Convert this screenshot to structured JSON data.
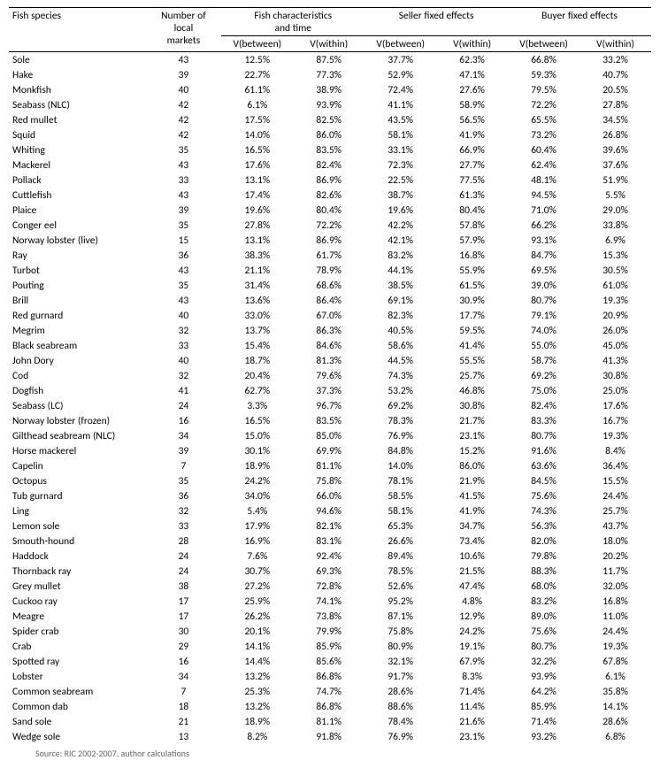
{
  "table": {
    "header": {
      "species": "Fish species",
      "markets": "Number of\nlocal\nmarkets",
      "group_fish": "Fish characteristics\nand time",
      "group_seller": "Seller fixed effects",
      "group_buyer": "Buyer fixed effects",
      "vbetween": "V(between)",
      "vwithin": "V(within)"
    },
    "footer": "Source: RIC 2002-2007, author calculations",
    "rows": [
      {
        "species": "Sole",
        "markets": 43,
        "fb": "12.5%",
        "fw": "87.5%",
        "sb": "37.7%",
        "sw": "62.3%",
        "bb": "66.8%",
        "bw": "33.2%"
      },
      {
        "species": "Hake",
        "markets": 39,
        "fb": "22.7%",
        "fw": "77.3%",
        "sb": "52.9%",
        "sw": "47.1%",
        "bb": "59.3%",
        "bw": "40.7%"
      },
      {
        "species": "Monkfish",
        "markets": 40,
        "fb": "61.1%",
        "fw": "38.9%",
        "sb": "72.4%",
        "sw": "27.6%",
        "bb": "79.5%",
        "bw": "20.5%"
      },
      {
        "species": "Seabass (NLC)",
        "markets": 42,
        "fb": "6.1%",
        "fw": "93.9%",
        "sb": "41.1%",
        "sw": "58.9%",
        "bb": "72.2%",
        "bw": "27.8%"
      },
      {
        "species": "Red mullet",
        "markets": 42,
        "fb": "17.5%",
        "fw": "82.5%",
        "sb": "43.5%",
        "sw": "56.5%",
        "bb": "65.5%",
        "bw": "34.5%"
      },
      {
        "species": "Squid",
        "markets": 42,
        "fb": "14.0%",
        "fw": "86.0%",
        "sb": "58.1%",
        "sw": "41.9%",
        "bb": "73.2%",
        "bw": "26.8%"
      },
      {
        "species": "Whiting",
        "markets": 35,
        "fb": "16.5%",
        "fw": "83.5%",
        "sb": "33.1%",
        "sw": "66.9%",
        "bb": "60.4%",
        "bw": "39.6%"
      },
      {
        "species": "Mackerel",
        "markets": 43,
        "fb": "17.6%",
        "fw": "82.4%",
        "sb": "72.3%",
        "sw": "27.7%",
        "bb": "62.4%",
        "bw": "37.6%"
      },
      {
        "species": "Pollack",
        "markets": 33,
        "fb": "13.1%",
        "fw": "86.9%",
        "sb": "22.5%",
        "sw": "77.5%",
        "bb": "48.1%",
        "bw": "51.9%"
      },
      {
        "species": "Cuttlefish",
        "markets": 43,
        "fb": "17.4%",
        "fw": "82.6%",
        "sb": "38.7%",
        "sw": "61.3%",
        "bb": "94.5%",
        "bw": "5.5%"
      },
      {
        "species": "Plaice",
        "markets": 39,
        "fb": "19.6%",
        "fw": "80.4%",
        "sb": "19.6%",
        "sw": "80.4%",
        "bb": "71.0%",
        "bw": "29.0%"
      },
      {
        "species": "Conger eel",
        "markets": 35,
        "fb": "27.8%",
        "fw": "72.2%",
        "sb": "42.2%",
        "sw": "57.8%",
        "bb": "66.2%",
        "bw": "33.8%"
      },
      {
        "species": "Norway lobster (live)",
        "markets": 15,
        "fb": "13.1%",
        "fw": "86.9%",
        "sb": "42.1%",
        "sw": "57.9%",
        "bb": "93.1%",
        "bw": "6.9%"
      },
      {
        "species": "Ray",
        "markets": 36,
        "fb": "38.3%",
        "fw": "61.7%",
        "sb": "83.2%",
        "sw": "16.8%",
        "bb": "84.7%",
        "bw": "15.3%"
      },
      {
        "species": "Turbot",
        "markets": 43,
        "fb": "21.1%",
        "fw": "78.9%",
        "sb": "44.1%",
        "sw": "55.9%",
        "bb": "69.5%",
        "bw": "30.5%"
      },
      {
        "species": "Pouting",
        "markets": 35,
        "fb": "31.4%",
        "fw": "68.6%",
        "sb": "38.5%",
        "sw": "61.5%",
        "bb": "39.0%",
        "bw": "61.0%"
      },
      {
        "species": "Brill",
        "markets": 43,
        "fb": "13.6%",
        "fw": "86.4%",
        "sb": "69.1%",
        "sw": "30.9%",
        "bb": "80.7%",
        "bw": "19.3%"
      },
      {
        "species": "Red gurnard",
        "markets": 40,
        "fb": "33.0%",
        "fw": "67.0%",
        "sb": "82.3%",
        "sw": "17.7%",
        "bb": "79.1%",
        "bw": "20.9%"
      },
      {
        "species": "Megrim",
        "markets": 32,
        "fb": "13.7%",
        "fw": "86.3%",
        "sb": "40.5%",
        "sw": "59.5%",
        "bb": "74.0%",
        "bw": "26.0%"
      },
      {
        "species": "Black seabream",
        "markets": 33,
        "fb": "15.4%",
        "fw": "84.6%",
        "sb": "58.6%",
        "sw": "41.4%",
        "bb": "55.0%",
        "bw": "45.0%"
      },
      {
        "species": "John Dory",
        "markets": 40,
        "fb": "18.7%",
        "fw": "81.3%",
        "sb": "44.5%",
        "sw": "55.5%",
        "bb": "58.7%",
        "bw": "41.3%"
      },
      {
        "species": "Cod",
        "markets": 32,
        "fb": "20.4%",
        "fw": "79.6%",
        "sb": "74.3%",
        "sw": "25.7%",
        "bb": "69.2%",
        "bw": "30.8%"
      },
      {
        "species": "Dogfish",
        "markets": 41,
        "fb": "62.7%",
        "fw": "37.3%",
        "sb": "53.2%",
        "sw": "46.8%",
        "bb": "75.0%",
        "bw": "25.0%"
      },
      {
        "species": "Seabass (LC)",
        "markets": 24,
        "fb": "3.3%",
        "fw": "96.7%",
        "sb": "69.2%",
        "sw": "30.8%",
        "bb": "82.4%",
        "bw": "17.6%"
      },
      {
        "species": "Norway lobster (frozen)",
        "markets": 16,
        "fb": "16.5%",
        "fw": "83.5%",
        "sb": "78.3%",
        "sw": "21.7%",
        "bb": "83.3%",
        "bw": "16.7%"
      },
      {
        "species": "Gilthead seabream (NLC)",
        "markets": 34,
        "fb": "15.0%",
        "fw": "85.0%",
        "sb": "76.9%",
        "sw": "23.1%",
        "bb": "80.7%",
        "bw": "19.3%"
      },
      {
        "species": "Horse mackerel",
        "markets": 39,
        "fb": "30.1%",
        "fw": "69.9%",
        "sb": "84.8%",
        "sw": "15.2%",
        "bb": "91.6%",
        "bw": "8.4%"
      },
      {
        "species": "Capelin",
        "markets": 7,
        "fb": "18.9%",
        "fw": "81.1%",
        "sb": "14.0%",
        "sw": "86.0%",
        "bb": "63.6%",
        "bw": "36.4%"
      },
      {
        "species": "Octopus",
        "markets": 35,
        "fb": "24.2%",
        "fw": "75.8%",
        "sb": "78.1%",
        "sw": "21.9%",
        "bb": "84.5%",
        "bw": "15.5%"
      },
      {
        "species": "Tub gurnard",
        "markets": 36,
        "fb": "34.0%",
        "fw": "66.0%",
        "sb": "58.5%",
        "sw": "41.5%",
        "bb": "75.6%",
        "bw": "24.4%"
      },
      {
        "species": "Ling",
        "markets": 32,
        "fb": "5.4%",
        "fw": "94.6%",
        "sb": "58.1%",
        "sw": "41.9%",
        "bb": "74.3%",
        "bw": "25.7%"
      },
      {
        "species": "Lemon sole",
        "markets": 33,
        "fb": "17.9%",
        "fw": "82.1%",
        "sb": "65.3%",
        "sw": "34.7%",
        "bb": "56.3%",
        "bw": "43.7%"
      },
      {
        "species": "Smouth-hound",
        "markets": 28,
        "fb": "16.9%",
        "fw": "83.1%",
        "sb": "26.6%",
        "sw": "73.4%",
        "bb": "82.0%",
        "bw": "18.0%"
      },
      {
        "species": "Haddock",
        "markets": 24,
        "fb": "7.6%",
        "fw": "92.4%",
        "sb": "89.4%",
        "sw": "10.6%",
        "bb": "79.8%",
        "bw": "20.2%"
      },
      {
        "species": "Thornback ray",
        "markets": 24,
        "fb": "30.7%",
        "fw": "69.3%",
        "sb": "78.5%",
        "sw": "21.5%",
        "bb": "88.3%",
        "bw": "11.7%"
      },
      {
        "species": "Grey mullet",
        "markets": 38,
        "fb": "27.2%",
        "fw": "72.8%",
        "sb": "52.6%",
        "sw": "47.4%",
        "bb": "68.0%",
        "bw": "32.0%"
      },
      {
        "species": "Cuckoo ray",
        "markets": 17,
        "fb": "25.9%",
        "fw": "74.1%",
        "sb": "95.2%",
        "sw": "4.8%",
        "bb": "83.2%",
        "bw": "16.8%"
      },
      {
        "species": "Meagre",
        "markets": 17,
        "fb": "26.2%",
        "fw": "73.8%",
        "sb": "87.1%",
        "sw": "12.9%",
        "bb": "89.0%",
        "bw": "11.0%"
      },
      {
        "species": "Spider crab",
        "markets": 30,
        "fb": "20.1%",
        "fw": "79.9%",
        "sb": "75.8%",
        "sw": "24.2%",
        "bb": "75.6%",
        "bw": "24.4%"
      },
      {
        "species": "Crab",
        "markets": 29,
        "fb": "14.1%",
        "fw": "85.9%",
        "sb": "80.9%",
        "sw": "19.1%",
        "bb": "80.7%",
        "bw": "19.3%"
      },
      {
        "species": "Spotted ray",
        "markets": 16,
        "fb": "14.4%",
        "fw": "85.6%",
        "sb": "32.1%",
        "sw": "67.9%",
        "bb": "32.2%",
        "bw": "67.8%"
      },
      {
        "species": "Lobster",
        "markets": 34,
        "fb": "13.2%",
        "fw": "86.8%",
        "sb": "91.7%",
        "sw": "8.3%",
        "bb": "93.9%",
        "bw": "6.1%"
      },
      {
        "species": "Common seabream",
        "markets": 7,
        "fb": "25.3%",
        "fw": "74.7%",
        "sb": "28.6%",
        "sw": "71.4%",
        "bb": "64.2%",
        "bw": "35.8%"
      },
      {
        "species": "Common dab",
        "markets": 18,
        "fb": "13.2%",
        "fw": "86.8%",
        "sb": "88.6%",
        "sw": "11.4%",
        "bb": "85.9%",
        "bw": "14.1%"
      },
      {
        "species": "Sand sole",
        "markets": 21,
        "fb": "18.9%",
        "fw": "81.1%",
        "sb": "78.4%",
        "sw": "21.6%",
        "bb": "71.4%",
        "bw": "28.6%"
      },
      {
        "species": "Wedge sole",
        "markets": 13,
        "fb": "8.2%",
        "fw": "91.8%",
        "sb": "76.9%",
        "sw": "23.1%",
        "bb": "93.2%",
        "bw": "6.8%"
      }
    ]
  },
  "style": {
    "font_family": "Calibri",
    "font_size_pt": 9,
    "text_color": "#000000",
    "bg_color": "#ffffff",
    "rule_color": "#000000"
  }
}
